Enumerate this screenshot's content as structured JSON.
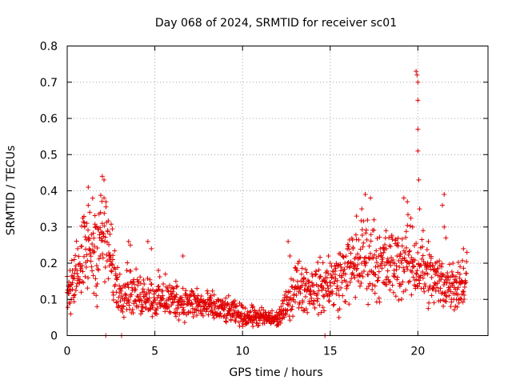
{
  "chart_data": {
    "type": "scatter",
    "title": "Day 068 of 2024, SRMTID for receiver sc01",
    "xlabel": "GPS time / hours",
    "ylabel": "SRMTID / TECUs",
    "xlim": [
      0,
      24
    ],
    "ylim": [
      0,
      0.8
    ],
    "x_ticks": [
      0,
      5,
      10,
      15,
      20
    ],
    "y_ticks": [
      0,
      0.1,
      0.2,
      0.3,
      0.4,
      0.5,
      0.6,
      0.7,
      0.8
    ],
    "x_tick_labels": [
      "0",
      "5",
      "10",
      "15",
      "20"
    ],
    "y_tick_labels": [
      "0",
      "0.1",
      "0.2",
      "0.3",
      "0.4",
      "0.5",
      "0.6",
      "0.7",
      "0.8"
    ],
    "grid": true,
    "marker": "plus",
    "color": "#e00000",
    "series": [
      {
        "name": "SRMTID",
        "trend": [
          [
            0.0,
            0.14
          ],
          [
            0.5,
            0.17
          ],
          [
            1.0,
            0.22
          ],
          [
            1.5,
            0.25
          ],
          [
            2.0,
            0.27
          ],
          [
            2.3,
            0.25
          ],
          [
            2.6,
            0.18
          ],
          [
            3.0,
            0.12
          ],
          [
            3.5,
            0.13
          ],
          [
            4.0,
            0.11
          ],
          [
            4.5,
            0.12
          ],
          [
            5.0,
            0.1
          ],
          [
            6.0,
            0.1
          ],
          [
            7.0,
            0.09
          ],
          [
            8.0,
            0.08
          ],
          [
            9.0,
            0.07
          ],
          [
            10.0,
            0.055
          ],
          [
            11.0,
            0.05
          ],
          [
            12.0,
            0.045
          ],
          [
            12.5,
            0.08
          ],
          [
            13.0,
            0.14
          ],
          [
            14.0,
            0.13
          ],
          [
            15.0,
            0.14
          ],
          [
            16.0,
            0.18
          ],
          [
            17.0,
            0.22
          ],
          [
            18.0,
            0.19
          ],
          [
            19.0,
            0.2
          ],
          [
            19.5,
            0.21
          ],
          [
            20.0,
            0.19
          ],
          [
            21.0,
            0.15
          ],
          [
            22.0,
            0.14
          ],
          [
            22.8,
            0.15
          ]
        ],
        "points": [
          [
            0.1,
            0.09
          ],
          [
            0.2,
            0.06
          ],
          [
            0.3,
            0.18
          ],
          [
            0.4,
            0.21
          ],
          [
            0.6,
            0.24
          ],
          [
            0.8,
            0.12
          ],
          [
            1.0,
            0.3
          ],
          [
            1.2,
            0.36
          ],
          [
            1.2,
            0.41
          ],
          [
            1.5,
            0.23
          ],
          [
            1.6,
            0.3
          ],
          [
            1.7,
            0.08
          ],
          [
            1.9,
            0.34
          ],
          [
            2.0,
            0.31
          ],
          [
            2.0,
            0.44
          ],
          [
            2.1,
            0.43
          ],
          [
            2.1,
            0.38
          ],
          [
            2.2,
            0.0
          ],
          [
            2.4,
            0.22
          ],
          [
            2.6,
            0.21
          ],
          [
            2.8,
            0.12
          ],
          [
            3.1,
            0.0
          ],
          [
            3.4,
            0.18
          ],
          [
            3.5,
            0.26
          ],
          [
            3.6,
            0.25
          ],
          [
            4.2,
            0.06
          ],
          [
            4.6,
            0.26
          ],
          [
            4.8,
            0.24
          ],
          [
            5.2,
            0.18
          ],
          [
            5.6,
            0.17
          ],
          [
            6.2,
            0.15
          ],
          [
            6.6,
            0.22
          ],
          [
            7.4,
            0.13
          ],
          [
            8.2,
            0.11
          ],
          [
            9.4,
            0.09
          ],
          [
            10.6,
            0.08
          ],
          [
            11.2,
            0.06
          ],
          [
            12.0,
            0.03
          ],
          [
            12.2,
            0.08
          ],
          [
            12.6,
            0.26
          ],
          [
            12.7,
            0.22
          ],
          [
            13.5,
            0.16
          ],
          [
            14.2,
            0.17
          ],
          [
            14.6,
            0.11
          ],
          [
            14.7,
            0.0
          ],
          [
            14.9,
            0.22
          ],
          [
            15.0,
            0.2
          ],
          [
            15.5,
            0.05
          ],
          [
            16.0,
            0.2
          ],
          [
            16.3,
            0.24
          ],
          [
            16.5,
            0.33
          ],
          [
            16.8,
            0.35
          ],
          [
            17.0,
            0.39
          ],
          [
            17.3,
            0.38
          ],
          [
            17.5,
            0.32
          ],
          [
            18.2,
            0.24
          ],
          [
            18.8,
            0.25
          ],
          [
            19.2,
            0.38
          ],
          [
            19.4,
            0.37
          ],
          [
            19.7,
            0.3
          ],
          [
            19.9,
            0.73
          ],
          [
            19.95,
            0.72
          ],
          [
            20.0,
            0.7
          ],
          [
            20.0,
            0.65
          ],
          [
            20.0,
            0.57
          ],
          [
            20.0,
            0.51
          ],
          [
            20.05,
            0.43
          ],
          [
            20.1,
            0.35
          ],
          [
            20.3,
            0.29
          ],
          [
            20.6,
            0.26
          ],
          [
            21.0,
            0.2
          ],
          [
            21.4,
            0.36
          ],
          [
            21.5,
            0.39
          ],
          [
            21.6,
            0.27
          ],
          [
            21.5,
            0.3
          ],
          [
            22.0,
            0.2
          ],
          [
            22.2,
            0.1
          ],
          [
            22.4,
            0.17
          ],
          [
            22.6,
            0.24
          ],
          [
            22.8,
            0.23
          ]
        ]
      }
    ]
  }
}
